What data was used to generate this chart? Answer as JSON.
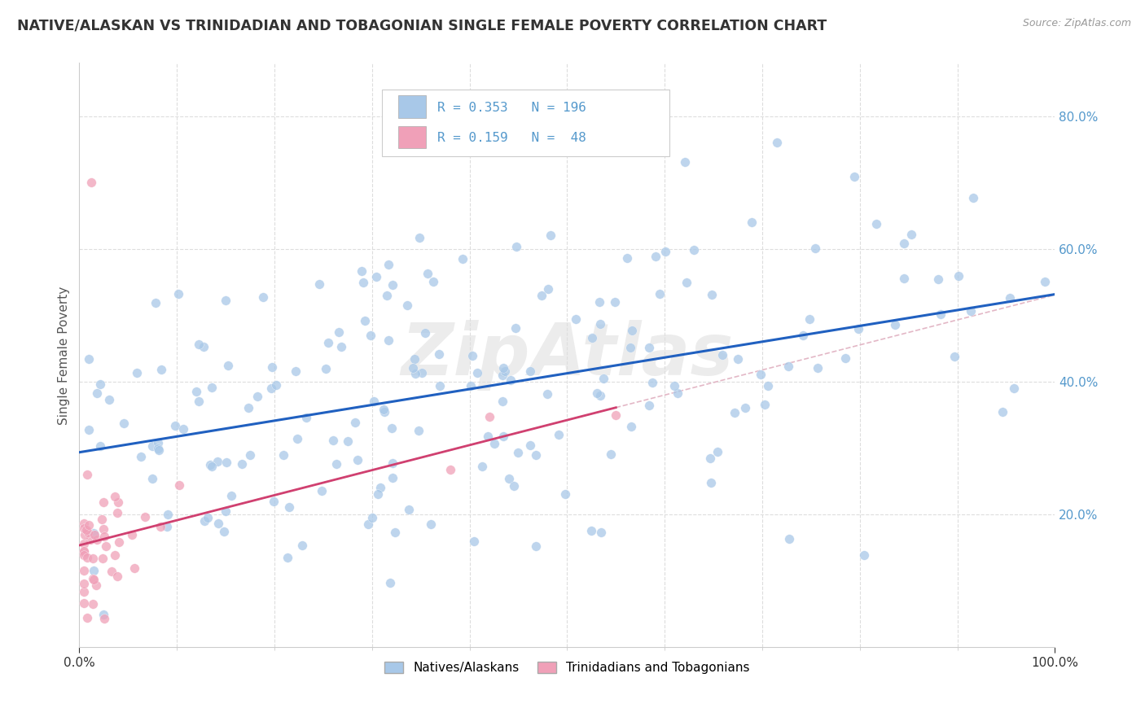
{
  "title": "NATIVE/ALASKAN VS TRINIDADIAN AND TOBAGONIAN SINGLE FEMALE POVERTY CORRELATION CHART",
  "source": "Source: ZipAtlas.com",
  "ylabel": "Single Female Poverty",
  "legend_bottom": [
    "Natives/Alaskans",
    "Trinidadians and Tobagonians"
  ],
  "blue_R": 0.353,
  "blue_N": 196,
  "pink_R": 0.159,
  "pink_N": 48,
  "blue_color": "#a8c8e8",
  "pink_color": "#f0a0b8",
  "blue_line_color": "#2060c0",
  "pink_line_color": "#d04070",
  "dashed_line_color": "#e0b0c0",
  "watermark": "ZipAtlas",
  "xlim": [
    0.0,
    1.0
  ],
  "ylim": [
    0.0,
    0.88
  ],
  "background_color": "#ffffff",
  "grid_color": "#e8e8e8",
  "tick_color": "#5599cc",
  "blue_seed": 1234,
  "pink_seed": 5678
}
